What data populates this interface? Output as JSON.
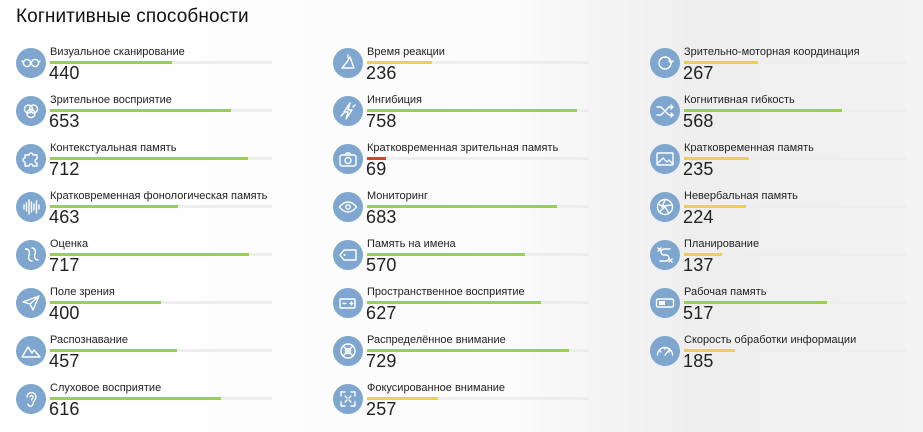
{
  "title": "Когнитивные способности",
  "max_score": 800,
  "colors": {
    "good": "#97d24c",
    "medium": "#f0cf4a",
    "low": "#e03c31",
    "icon_bg": "#7ea6cf"
  },
  "columns": [
    [
      {
        "name": "Визуальное сканирование",
        "value": "440",
        "icon": "glasses-icon"
      },
      {
        "name": "Зрительное восприятие",
        "value": "653",
        "icon": "eye-circles-icon"
      },
      {
        "name": "Контекстуальная память",
        "value": "712",
        "icon": "puzzle-icon"
      },
      {
        "name": "Кратковременная фонологическая память",
        "value": "463",
        "icon": "sound-wave-icon"
      },
      {
        "name": "Оценка",
        "value": "717",
        "icon": "estimation-icon"
      },
      {
        "name": "Поле зрения",
        "value": "400",
        "icon": "paper-plane-icon"
      },
      {
        "name": "Распознавание",
        "value": "457",
        "icon": "mountains-icon"
      },
      {
        "name": "Слуховое восприятие",
        "value": "616",
        "icon": "ear-icon"
      }
    ],
    [
      {
        "name": "Время реакции",
        "value": "236",
        "icon": "reaction-icon"
      },
      {
        "name": "Ингибиция",
        "value": "758",
        "icon": "lightning-icon"
      },
      {
        "name": "Кратковременная зрительная память",
        "value": "69",
        "icon": "camera-icon"
      },
      {
        "name": "Мониторинг",
        "value": "683",
        "icon": "target-eye-icon"
      },
      {
        "name": "Память на имена",
        "value": "570",
        "icon": "name-tag-icon"
      },
      {
        "name": "Пространственное восприятие",
        "value": "627",
        "icon": "battery-icon"
      },
      {
        "name": "Распределённое внимание",
        "value": "729",
        "icon": "crosshair-icon"
      },
      {
        "name": "Фокусированное внимание",
        "value": "257",
        "icon": "focus-icon"
      }
    ],
    [
      {
        "name": "Зрительно-моторная координация",
        "value": "267",
        "icon": "coordination-icon"
      },
      {
        "name": "Когнитивная гибкость",
        "value": "568",
        "icon": "shuffle-icon"
      },
      {
        "name": "Кратковременная память",
        "value": "235",
        "icon": "picture-icon"
      },
      {
        "name": "Невербальная память",
        "value": "224",
        "icon": "aperture-icon"
      },
      {
        "name": "Планирование",
        "value": "137",
        "icon": "planning-icon"
      },
      {
        "name": "Рабочая память",
        "value": "517",
        "icon": "toggle-icon"
      },
      {
        "name": "Скорость обработки информации",
        "value": "185",
        "icon": "speedometer-icon"
      }
    ]
  ]
}
